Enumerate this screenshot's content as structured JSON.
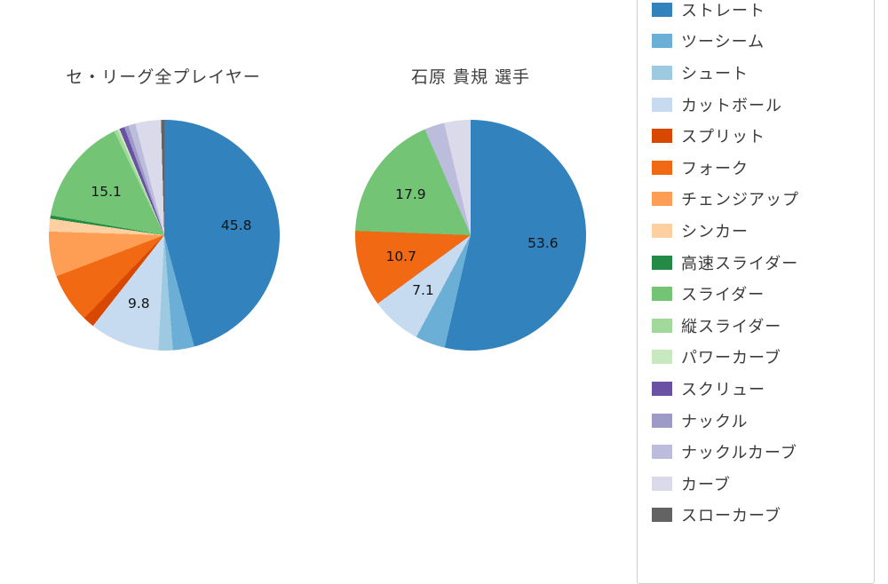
{
  "page": {
    "background": "#ffffff"
  },
  "chart_data": [
    {
      "type": "pie",
      "title": "セ・リーグ全プレイヤー",
      "start_angle": "top",
      "direction": "clockwise",
      "value_labels_shown": [
        "45.8",
        "9.8",
        "15.1"
      ],
      "slices": [
        {
          "label": "ストレート",
          "value": 45.8,
          "show_value": true
        },
        {
          "label": "ツーシーム",
          "value": 3.0,
          "show_value": false
        },
        {
          "label": "シュート",
          "value": 2.0,
          "show_value": false
        },
        {
          "label": "カットボール",
          "value": 9.8,
          "show_value": true
        },
        {
          "label": "スプリット",
          "value": 1.6,
          "show_value": false
        },
        {
          "label": "フォーク",
          "value": 7.0,
          "show_value": false
        },
        {
          "label": "チェンジアップ",
          "value": 6.3,
          "show_value": false
        },
        {
          "label": "シンカー",
          "value": 1.8,
          "show_value": false
        },
        {
          "label": "高速スライダー",
          "value": 0.45,
          "show_value": false
        },
        {
          "label": "スライダー",
          "value": 15.1,
          "show_value": true
        },
        {
          "label": "縦スライダー",
          "value": 0.5,
          "show_value": false
        },
        {
          "label": "パワーカーブ",
          "value": 0.3,
          "show_value": false
        },
        {
          "label": "スクリュー",
          "value": 0.7,
          "show_value": false
        },
        {
          "label": "ナックル",
          "value": 0.6,
          "show_value": false
        },
        {
          "label": "ナックルカーブ",
          "value": 1.0,
          "show_value": false
        },
        {
          "label": "カーブ",
          "value": 3.6,
          "show_value": false
        },
        {
          "label": "スローカーブ",
          "value": 0.45,
          "show_value": false
        }
      ]
    },
    {
      "type": "pie",
      "title": "石原 貴規 選手",
      "start_angle": "top",
      "direction": "clockwise",
      "value_labels_shown": [
        "53.6",
        "7.1",
        "10.7",
        "17.9"
      ],
      "slices": [
        {
          "label": "ストレート",
          "value": 53.6,
          "show_value": true
        },
        {
          "label": "ツーシーム",
          "value": 4.2,
          "show_value": false
        },
        {
          "label": "カットボール",
          "value": 7.1,
          "show_value": true
        },
        {
          "label": "フォーク",
          "value": 10.7,
          "show_value": true
        },
        {
          "label": "スライダー",
          "value": 17.9,
          "show_value": true
        },
        {
          "label": "ナックルカーブ",
          "value": 2.8,
          "show_value": false
        },
        {
          "label": "カーブ",
          "value": 3.7,
          "show_value": false
        }
      ]
    }
  ],
  "legend": {
    "position": "right",
    "items": [
      {
        "label": "ストレート",
        "color": "#3182bd"
      },
      {
        "label": "ツーシーム",
        "color": "#6baed6"
      },
      {
        "label": "シュート",
        "color": "#9ecae1"
      },
      {
        "label": "カットボール",
        "color": "#c6dbef"
      },
      {
        "label": "スプリット",
        "color": "#d94801"
      },
      {
        "label": "フォーク",
        "color": "#f16913"
      },
      {
        "label": "チェンジアップ",
        "color": "#fd9e54"
      },
      {
        "label": "シンカー",
        "color": "#fdd0a2"
      },
      {
        "label": "高速スライダー",
        "color": "#238b45"
      },
      {
        "label": "スライダー",
        "color": "#74c476"
      },
      {
        "label": "縦スライダー",
        "color": "#a1d99b"
      },
      {
        "label": "パワーカーブ",
        "color": "#c7e9c0"
      },
      {
        "label": "スクリュー",
        "color": "#6a51a3"
      },
      {
        "label": "ナックル",
        "color": "#9e9ac8"
      },
      {
        "label": "ナックルカーブ",
        "color": "#bcbddc"
      },
      {
        "label": "カーブ",
        "color": "#dadaeb"
      },
      {
        "label": "スローカーブ",
        "color": "#636363"
      }
    ]
  }
}
